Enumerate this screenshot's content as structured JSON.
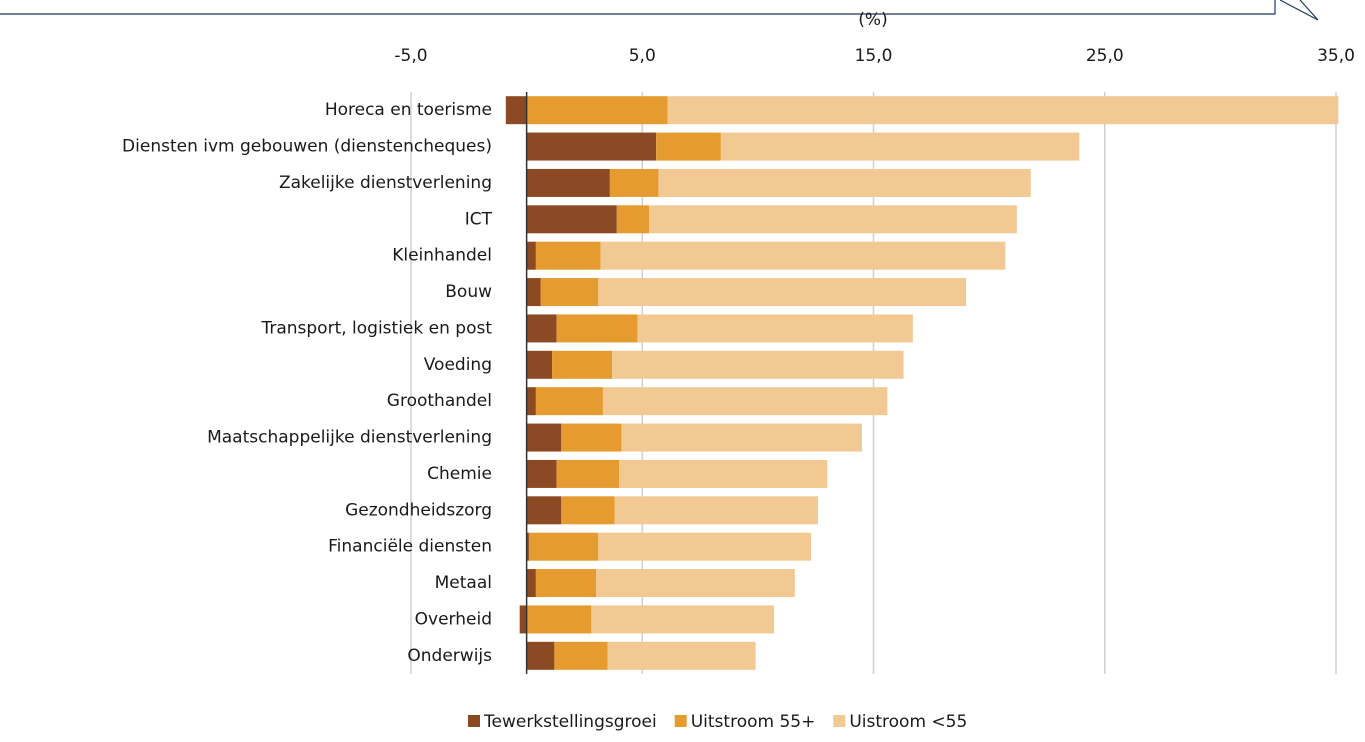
{
  "chart_data": {
    "type": "stacked-barh",
    "axis_label": "(%)",
    "categories": [
      "Horeca en toerisme",
      "Diensten ivm gebouwen (dienstencheques)",
      "Zakelijke dienstverlening",
      "ICT",
      "Kleinhandel",
      "Bouw",
      "Transport, logistiek en post",
      "Voeding",
      "Groothandel",
      "Maatschappelijke dienstverlening",
      "Chemie",
      "Gezondheidszorg",
      "Financiële diensten",
      "Metaal",
      "Overheid",
      "Onderwijs"
    ],
    "series": [
      {
        "name": "Tewerkstellingsgroei",
        "color": "#8b4a23",
        "values": [
          -0.9,
          5.6,
          3.6,
          3.9,
          0.4,
          0.6,
          1.3,
          1.1,
          0.4,
          1.5,
          1.3,
          1.5,
          0.1,
          0.4,
          -0.3,
          1.2
        ]
      },
      {
        "name": "Uitstroom 55+",
        "color": "#e59b2f",
        "values": [
          6.1,
          2.8,
          2.1,
          1.4,
          2.8,
          2.5,
          3.5,
          2.6,
          2.9,
          2.6,
          2.7,
          2.3,
          3.0,
          2.6,
          2.8,
          2.3
        ]
      },
      {
        "name": "Uistroom <55",
        "color": "#f2c992",
        "values": [
          29.0,
          15.5,
          16.1,
          15.9,
          17.5,
          15.9,
          11.9,
          12.6,
          12.3,
          10.4,
          9.0,
          8.8,
          9.2,
          8.6,
          7.9,
          6.4
        ]
      }
    ],
    "xlim": [
      -5,
      35
    ],
    "xticks": [
      {
        "value": -5,
        "label": "-5,0"
      },
      {
        "value": 5,
        "label": "5,0"
      },
      {
        "value": 15,
        "label": "15,0"
      },
      {
        "value": 25,
        "label": "25,0"
      },
      {
        "value": 35,
        "label": "35,0"
      }
    ],
    "grid": true
  }
}
